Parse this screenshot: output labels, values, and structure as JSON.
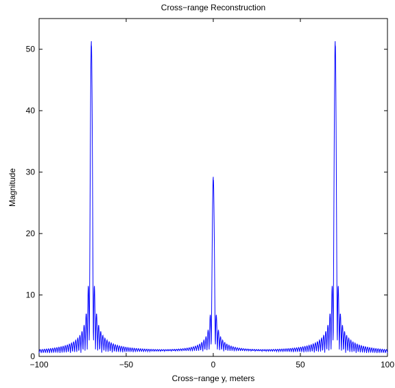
{
  "chart_data": {
    "type": "line",
    "title": "Cross−range Reconstruction",
    "xlabel": "Cross−range y, meters",
    "ylabel": "Magnitude",
    "xlim": [
      -100,
      100
    ],
    "ylim": [
      0,
      55
    ],
    "xticks": [
      -100,
      -50,
      0,
      50,
      100
    ],
    "xtick_labels": [
      "−100",
      "−50",
      "0",
      "50",
      "100"
    ],
    "yticks": [
      0,
      10,
      20,
      30,
      40,
      50
    ],
    "ytick_labels": [
      "0",
      "10",
      "20",
      "30",
      "40",
      "50"
    ],
    "grid": false,
    "line_color": "#0000ff",
    "peaks": [
      {
        "x": -70,
        "y": 50.7
      },
      {
        "x": 0,
        "y": 28.4
      },
      {
        "x": 70,
        "y": 50.7
      }
    ],
    "sidelobes": [
      {
        "x": -72.5,
        "y": 5.6
      },
      {
        "x": -67.5,
        "y": 7.9
      },
      {
        "x": -74.5,
        "y": 3.0
      },
      {
        "x": -65.5,
        "y": 3.4
      },
      {
        "x": -2,
        "y": 2.2
      },
      {
        "x": 2,
        "y": 2.0
      },
      {
        "x": 67.5,
        "y": 7.8
      },
      {
        "x": 72.5,
        "y": 5.6
      },
      {
        "x": 65.5,
        "y": 3.4
      },
      {
        "x": 74.5,
        "y": 3.0
      }
    ]
  }
}
